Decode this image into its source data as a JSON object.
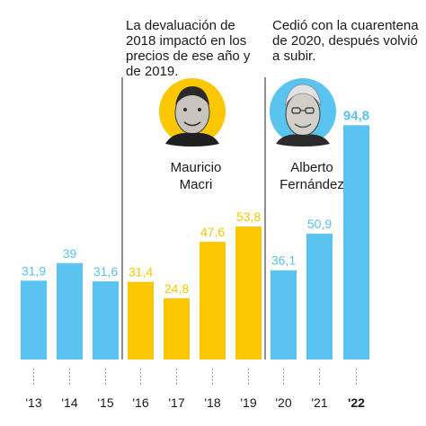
{
  "chart_data": {
    "type": "bar",
    "title": "",
    "xlabel": "",
    "ylabel": "",
    "ylim": [
      0,
      100
    ],
    "grid": false,
    "categories": [
      "'13",
      "'14",
      "'15",
      "'16",
      "'17",
      "'18",
      "'19",
      "'20",
      "'21",
      "'22"
    ],
    "values": [
      31.9,
      39,
      31.6,
      31.4,
      24.8,
      47.6,
      53.8,
      36.1,
      50.9,
      94.8
    ],
    "value_labels": [
      "31,9",
      "39",
      "31,6",
      "31,4",
      "24,8",
      "47,6",
      "53,8",
      "36,1",
      "50,9",
      "94,8"
    ],
    "groups": [
      "other",
      "other",
      "other",
      "macri",
      "macri",
      "macri",
      "macri",
      "fernandez",
      "fernandez",
      "fernandez"
    ],
    "highlight_index": 9,
    "colors": {
      "other": "#5bc3f0",
      "macri": "#fbc700",
      "fernandez": "#5bc3f0",
      "macri_label": "#fbc700",
      "other_label": "#5bc3f0",
      "divider": "#222222"
    },
    "annotations": {
      "macri": "La devaluación de 2018 impactó en los precios de ese año y de 2019.",
      "fernandez": "Cedió con la cuarentena de 2020, después volvió a subir."
    },
    "people": {
      "macri": {
        "first": "Mauricio",
        "last": "Macri",
        "bg_color": "#fbc700"
      },
      "fernandez": {
        "first": "Alberto",
        "last": "Fernández",
        "bg_color": "#5bc3f0"
      }
    }
  }
}
